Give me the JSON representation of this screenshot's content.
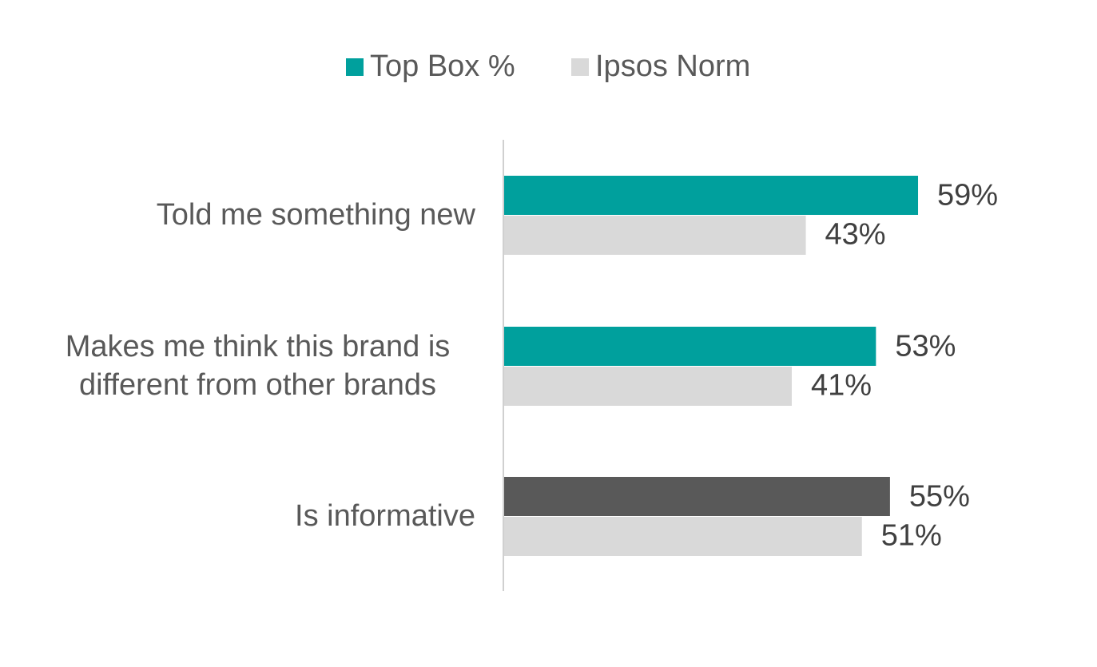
{
  "chart_data": {
    "type": "hbar",
    "categories": [
      "Told me something new",
      "Makes me think this brand is different from other brands",
      "Is informative"
    ],
    "series": [
      {
        "name": "Top Box %",
        "color": "#00a09d",
        "colors": [
          "#00a09d",
          "#00a09d",
          "#595959"
        ],
        "values": [
          59,
          53,
          55
        ],
        "value_labels": [
          "59%",
          "53%",
          "55%"
        ]
      },
      {
        "name": "Ipsos Norm",
        "color": "#d9d9d9",
        "values": [
          43,
          41,
          51
        ],
        "value_labels": [
          "43%",
          "41%",
          "51%"
        ]
      }
    ],
    "legend": "top"
  }
}
